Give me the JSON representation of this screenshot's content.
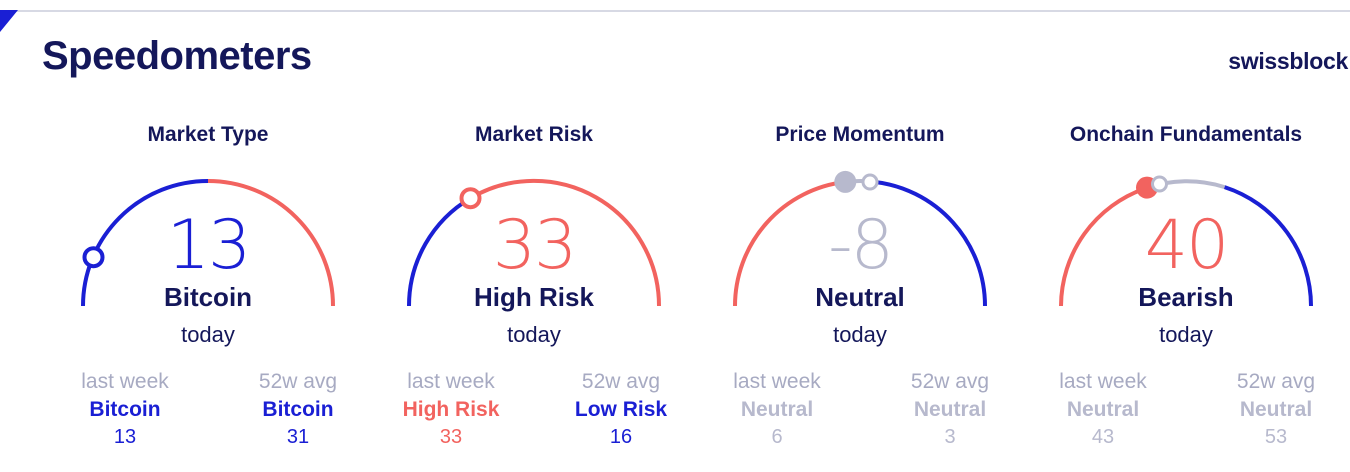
{
  "header": {
    "title": "Speedometers",
    "brand": "swissblock"
  },
  "colors": {
    "blue": "#1a1fd4",
    "red": "#f2635f",
    "grey": "#b7b9cd",
    "navy": "#14175a"
  },
  "gauges": [
    {
      "title": "Market Type",
      "value": "13",
      "label": "Bitcoin",
      "today": "today",
      "value_color": "blue",
      "label_color": "navy",
      "last_week": {
        "head": "last week",
        "label": "Bitcoin",
        "num": "13",
        "color": "blue"
      },
      "avg": {
        "head": "52w avg",
        "label": "Bitcoin",
        "num": "31",
        "color": "blue"
      }
    },
    {
      "title": "Market Risk",
      "value": "33",
      "label": "High Risk",
      "today": "today",
      "value_color": "red",
      "label_color": "navy",
      "last_week": {
        "head": "last week",
        "label": "High Risk",
        "num": "33",
        "color": "red"
      },
      "avg": {
        "head": "52w avg",
        "label": "Low Risk",
        "num": "16",
        "color": "blue"
      }
    },
    {
      "title": "Price Momentum",
      "value": "-8",
      "label": "Neutral",
      "today": "today",
      "value_color": "grey",
      "label_color": "navy",
      "last_week": {
        "head": "last week",
        "label": "Neutral",
        "num": "6",
        "color": "grey"
      },
      "avg": {
        "head": "52w avg",
        "label": "Neutral",
        "num": "3",
        "color": "grey"
      }
    },
    {
      "title": "Onchain Fundamentals",
      "value": "40",
      "label": "Bearish",
      "today": "today",
      "value_color": "red",
      "label_color": "navy",
      "last_week": {
        "head": "last week",
        "label": "Neutral",
        "num": "43",
        "color": "grey"
      },
      "avg": {
        "head": "52w avg",
        "label": "Neutral",
        "num": "53",
        "color": "grey"
      }
    }
  ]
}
